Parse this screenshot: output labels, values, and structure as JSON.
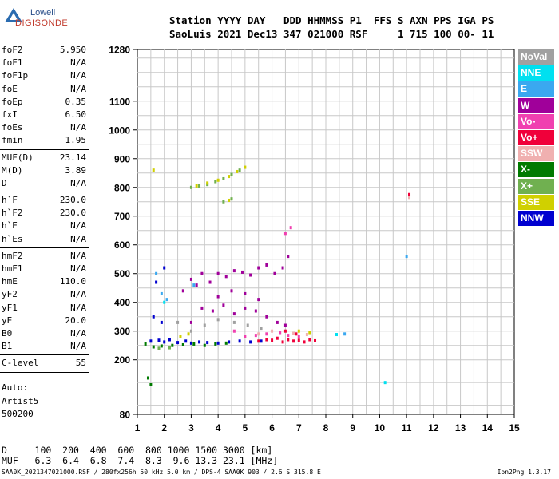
{
  "logo": {
    "top": "Lowell",
    "bottom": "DIGISONDE"
  },
  "header": {
    "line1": "Station YYYY DAY   DDD HHMMSS P1  FFS S AXN PPS IGA PS",
    "line2": "SaoLuis 2021 Dec13 347 021000 RSF     1 715 100 00- 11"
  },
  "params": {
    "group1": [
      {
        "label": "foF2",
        "value": "5.950"
      },
      {
        "label": "foF1",
        "value": "N/A"
      },
      {
        "label": "foF1p",
        "value": "N/A"
      },
      {
        "label": "foE",
        "value": "N/A"
      },
      {
        "label": "foEp",
        "value": "0.35"
      },
      {
        "label": "fxI",
        "value": "6.50"
      },
      {
        "label": "foEs",
        "value": "N/A"
      },
      {
        "label": "fmin",
        "value": "1.95"
      }
    ],
    "group2": [
      {
        "label": "MUF(D)",
        "value": "23.14"
      },
      {
        "label": "M(D)",
        "value": "3.89"
      },
      {
        "label": "D",
        "value": "N/A"
      }
    ],
    "group3": [
      {
        "label": "h`F",
        "value": "230.0"
      },
      {
        "label": "h`F2",
        "value": "230.0"
      },
      {
        "label": "h`E",
        "value": "N/A"
      },
      {
        "label": "h`Es",
        "value": "N/A"
      }
    ],
    "group4": [
      {
        "label": "hmF2",
        "value": "N/A"
      },
      {
        "label": "hmF1",
        "value": "N/A"
      },
      {
        "label": "hmE",
        "value": "110.0"
      },
      {
        "label": "yF2",
        "value": "N/A"
      },
      {
        "label": "yF1",
        "value": "N/A"
      },
      {
        "label": "yE",
        "value": "20.0"
      },
      {
        "label": "B0",
        "value": "N/A"
      },
      {
        "label": "B1",
        "value": "N/A"
      }
    ],
    "group5": [
      {
        "label": "C-level",
        "value": "55"
      }
    ]
  },
  "auto": {
    "line1": "Auto:",
    "line2": "Artist5",
    "line3": "500200"
  },
  "legend": [
    {
      "label": "NoVal",
      "color": "#a0a0a0"
    },
    {
      "label": "NNE",
      "color": "#00e0f0"
    },
    {
      "label": "E",
      "color": "#3aa8f0"
    },
    {
      "label": "W",
      "color": "#a0009a"
    },
    {
      "label": "Vo-",
      "color": "#f040b0"
    },
    {
      "label": "Vo+",
      "color": "#f0003a"
    },
    {
      "label": "SSW",
      "color": "#f0b0b0"
    },
    {
      "label": "X-",
      "color": "#007a00"
    },
    {
      "label": "X+",
      "color": "#70b050"
    },
    {
      "label": "SSE",
      "color": "#d0d000"
    },
    {
      "label": "NNW",
      "color": "#0000d0"
    }
  ],
  "footer": {
    "line1": "D     100  200  400  600  800 1000 1500 3000 [km]",
    "line2": "MUF   6.3  6.4  6.8  7.4  8.3  9.6 13.3 23.1 [MHz]",
    "file": "SAA0K_2021347021000.RSF / 280fx256h 50 kHz 5.0 km / DPS-4 SAA0K 903 / 2.6 S 315.8 E",
    "version": "Ion2Png 1.3.17"
  },
  "chart_data": {
    "type": "scatter",
    "xlabel": "",
    "ylabel": "",
    "xlim": [
      1,
      15
    ],
    "ylim": [
      80,
      1280
    ],
    "x_ticks": [
      1,
      2,
      3,
      4,
      5,
      6,
      7,
      8,
      9,
      10,
      11,
      12,
      13,
      14,
      15
    ],
    "y_ticks": [
      80,
      200,
      300,
      400,
      500,
      600,
      700,
      800,
      900,
      1000,
      1100,
      1280
    ],
    "grid": true,
    "series": [
      {
        "name": "NNW",
        "color": "#0000d0",
        "points": [
          [
            1.5,
            265
          ],
          [
            1.8,
            268
          ],
          [
            2.0,
            262
          ],
          [
            2.2,
            270
          ],
          [
            2.5,
            260
          ],
          [
            2.8,
            265
          ],
          [
            3.0,
            258
          ],
          [
            3.3,
            262
          ],
          [
            3.6,
            260
          ],
          [
            4.0,
            258
          ],
          [
            4.4,
            262
          ],
          [
            4.8,
            265
          ],
          [
            5.2,
            262
          ],
          [
            5.6,
            265
          ],
          [
            1.6,
            350
          ],
          [
            1.9,
            330
          ],
          [
            2.0,
            520
          ],
          [
            1.7,
            470
          ]
        ]
      },
      {
        "name": "W",
        "color": "#a0009a",
        "points": [
          [
            3.0,
            480
          ],
          [
            3.2,
            460
          ],
          [
            3.4,
            500
          ],
          [
            3.7,
            470
          ],
          [
            4.0,
            500
          ],
          [
            4.3,
            490
          ],
          [
            4.6,
            510
          ],
          [
            4.9,
            505
          ],
          [
            5.2,
            495
          ],
          [
            5.5,
            520
          ],
          [
            5.8,
            530
          ],
          [
            6.1,
            500
          ],
          [
            6.4,
            520
          ],
          [
            6.6,
            560
          ],
          [
            3.4,
            380
          ],
          [
            3.8,
            370
          ],
          [
            4.2,
            390
          ],
          [
            4.6,
            360
          ],
          [
            5.0,
            380
          ],
          [
            5.4,
            370
          ],
          [
            5.8,
            350
          ],
          [
            6.2,
            330
          ],
          [
            6.5,
            320
          ],
          [
            4.0,
            420
          ],
          [
            4.5,
            440
          ],
          [
            5.0,
            430
          ],
          [
            5.5,
            410
          ],
          [
            2.7,
            440
          ],
          [
            3.0,
            330
          ]
        ]
      },
      {
        "name": "Vo+",
        "color": "#f0003a",
        "points": [
          [
            5.5,
            265
          ],
          [
            5.8,
            270
          ],
          [
            6.0,
            268
          ],
          [
            6.2,
            275
          ],
          [
            6.4,
            262
          ],
          [
            6.6,
            270
          ],
          [
            6.8,
            265
          ],
          [
            7.0,
            268
          ],
          [
            7.2,
            262
          ],
          [
            7.4,
            270
          ],
          [
            7.6,
            266
          ],
          [
            6.5,
            300
          ],
          [
            6.9,
            290
          ],
          [
            11.1,
            775
          ]
        ]
      },
      {
        "name": "Vo-",
        "color": "#f040b0",
        "points": [
          [
            5.0,
            280
          ],
          [
            5.4,
            285
          ],
          [
            5.8,
            290
          ],
          [
            6.3,
            295
          ],
          [
            6.6,
            285
          ],
          [
            7.0,
            280
          ],
          [
            4.6,
            300
          ],
          [
            6.5,
            640
          ],
          [
            6.7,
            660
          ]
        ]
      },
      {
        "name": "X-",
        "color": "#007a00",
        "points": [
          [
            1.3,
            255
          ],
          [
            1.6,
            245
          ],
          [
            1.9,
            248
          ],
          [
            2.3,
            250
          ],
          [
            2.7,
            252
          ],
          [
            3.1,
            255
          ],
          [
            3.5,
            250
          ],
          [
            3.9,
            255
          ],
          [
            4.3,
            258
          ],
          [
            1.4,
            160
          ],
          [
            1.5,
            145
          ]
        ]
      },
      {
        "name": "X+",
        "color": "#70b050",
        "points": [
          [
            3.0,
            800
          ],
          [
            3.3,
            805
          ],
          [
            3.6,
            810
          ],
          [
            3.9,
            820
          ],
          [
            4.2,
            830
          ],
          [
            4.5,
            845
          ],
          [
            4.8,
            860
          ],
          [
            4.2,
            750
          ],
          [
            4.5,
            760
          ],
          [
            1.8,
            240
          ],
          [
            2.2,
            242
          ]
        ]
      },
      {
        "name": "SSE",
        "color": "#d0d000",
        "points": [
          [
            3.2,
            805
          ],
          [
            3.6,
            815
          ],
          [
            4.0,
            825
          ],
          [
            4.4,
            838
          ],
          [
            4.7,
            855
          ],
          [
            5.0,
            870
          ],
          [
            1.6,
            860
          ],
          [
            4.4,
            755
          ],
          [
            2.6,
            280
          ],
          [
            2.9,
            290
          ],
          [
            7.0,
            300
          ],
          [
            7.4,
            295
          ]
        ]
      },
      {
        "name": "E",
        "color": "#3aa8f0",
        "points": [
          [
            1.7,
            500
          ],
          [
            1.9,
            430
          ],
          [
            2.1,
            410
          ],
          [
            3.1,
            460
          ],
          [
            8.7,
            290
          ],
          [
            11.0,
            560
          ]
        ]
      },
      {
        "name": "NNE",
        "color": "#00e0f0",
        "points": [
          [
            10.2,
            150
          ],
          [
            8.4,
            288
          ],
          [
            2.0,
            400
          ]
        ]
      },
      {
        "name": "SSW",
        "color": "#f0b0b0",
        "points": [
          [
            11.1,
            765
          ],
          [
            5.5,
            290
          ],
          [
            6.0,
            300
          ],
          [
            6.8,
            292
          ],
          [
            7.3,
            288
          ]
        ]
      },
      {
        "name": "NoVal",
        "color": "#a0a0a0",
        "points": [
          [
            2.5,
            330
          ],
          [
            3.0,
            300
          ],
          [
            3.5,
            320
          ],
          [
            4.0,
            340
          ],
          [
            4.6,
            330
          ],
          [
            5.1,
            320
          ],
          [
            5.6,
            310
          ]
        ]
      }
    ]
  }
}
